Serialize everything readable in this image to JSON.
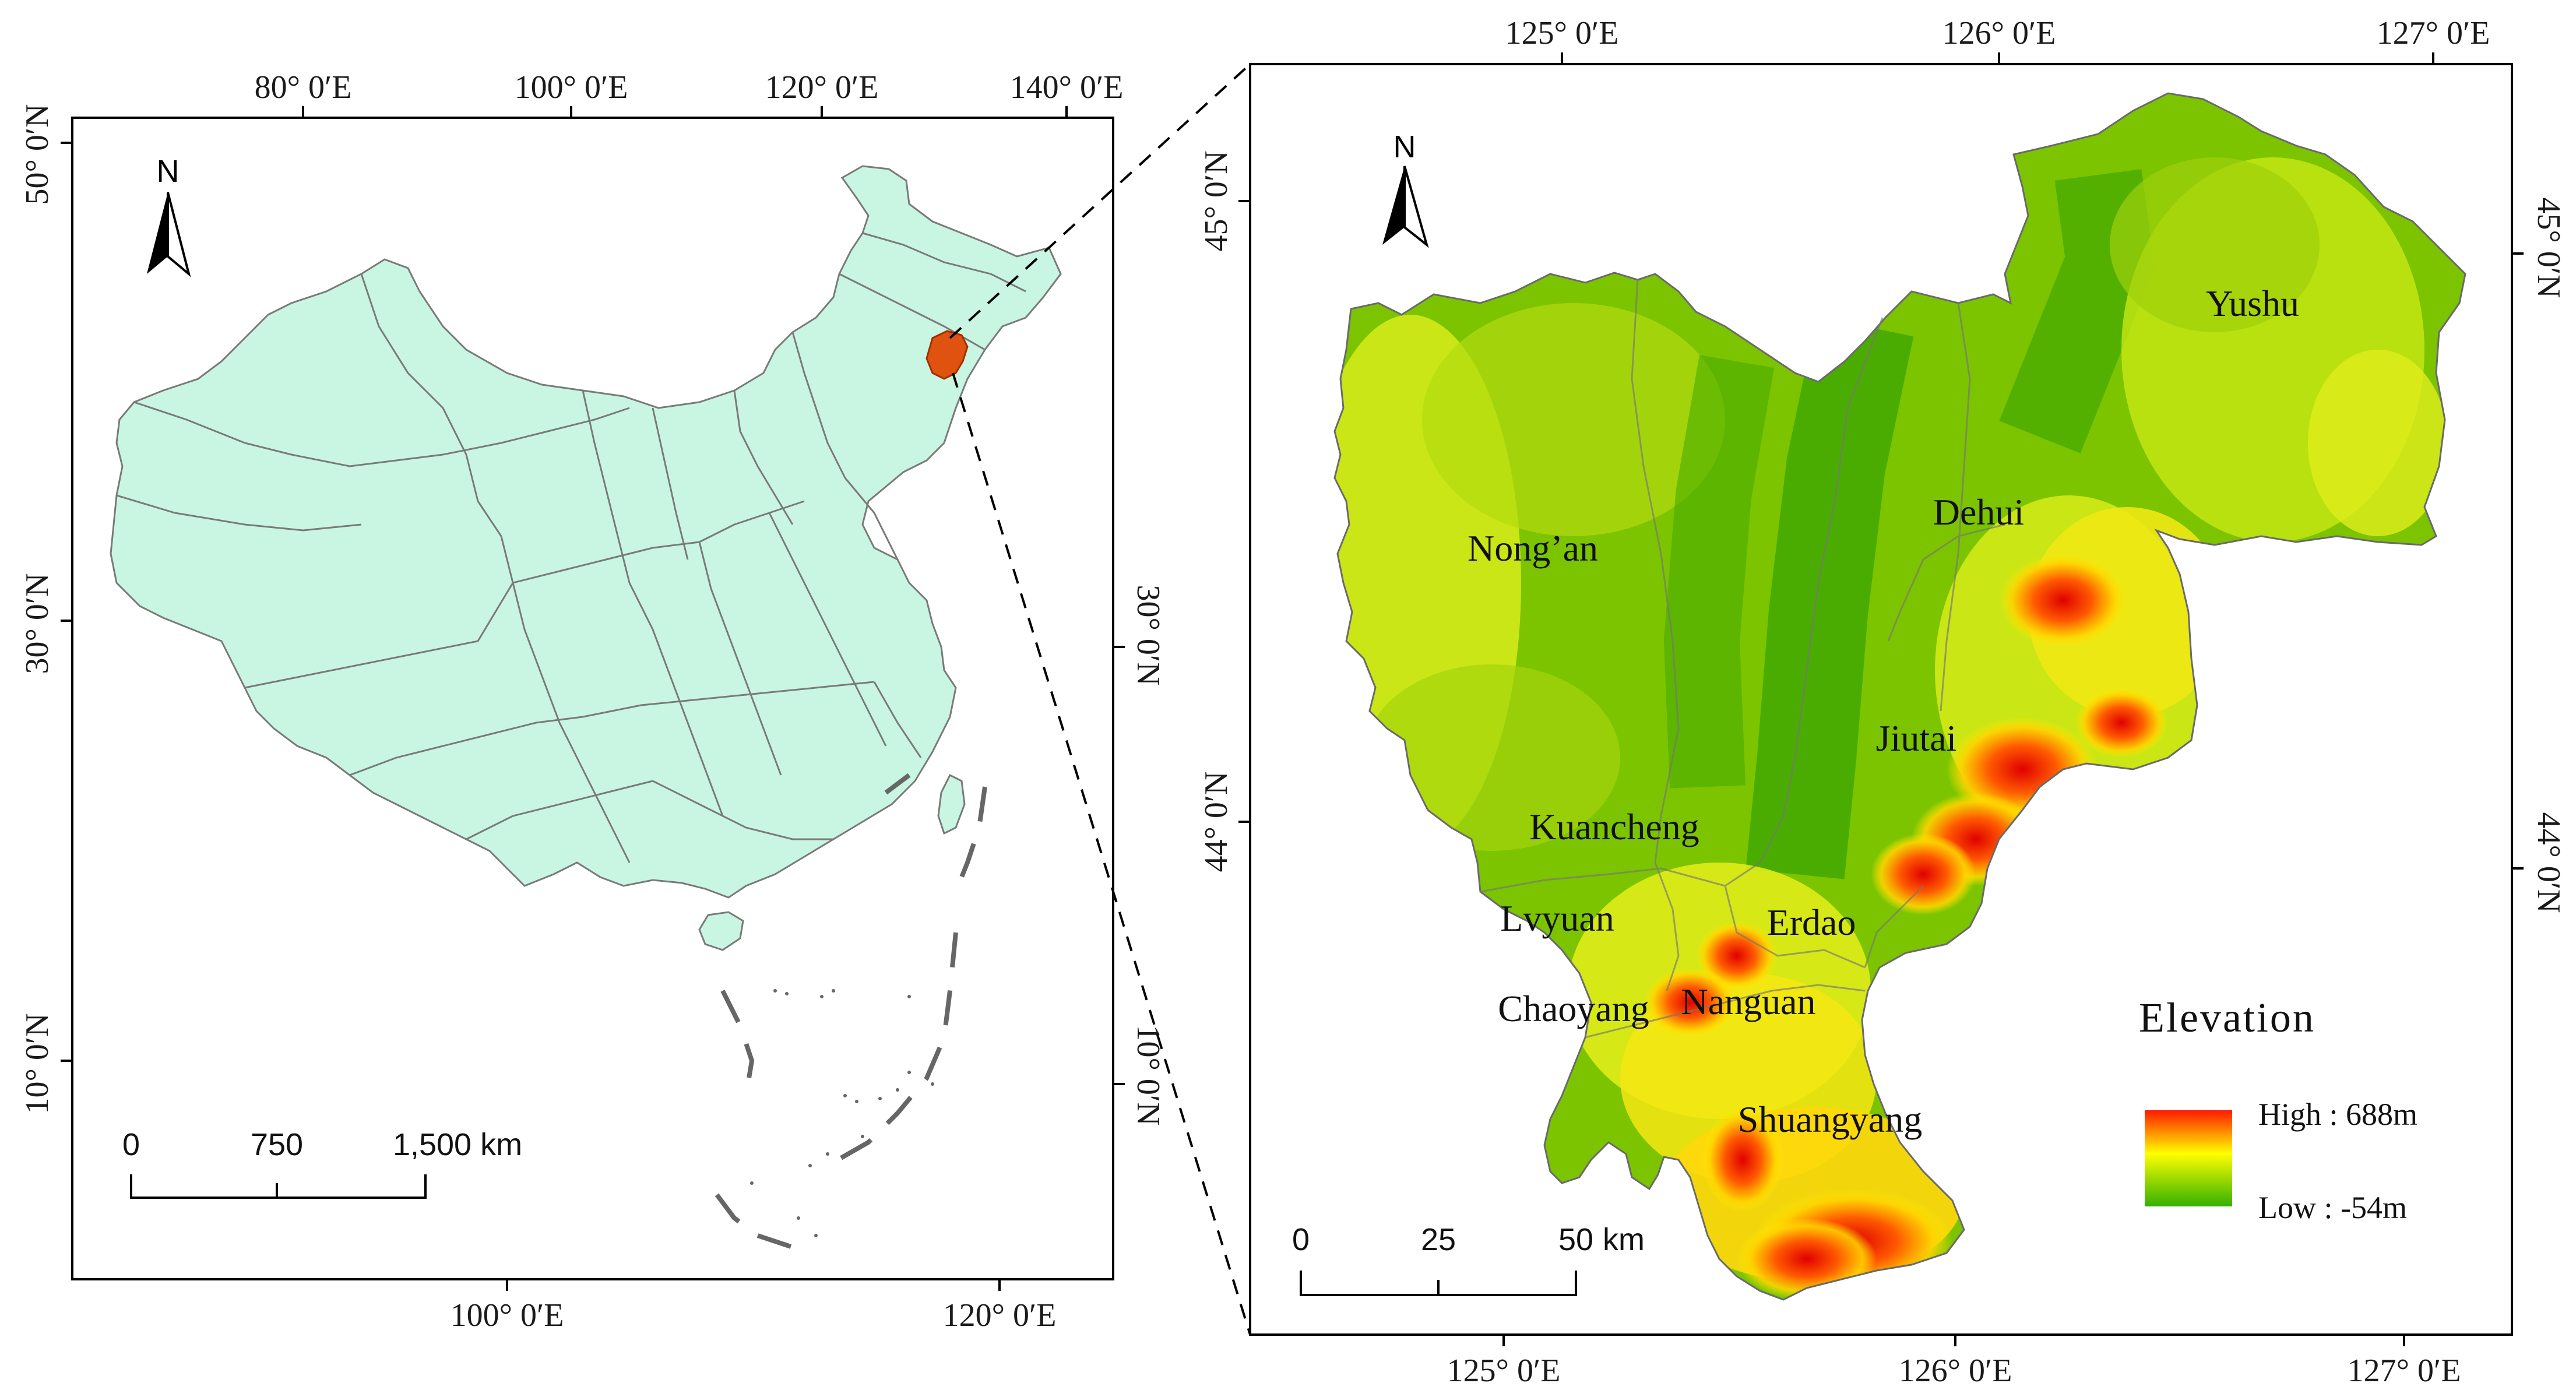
{
  "overview_map": {
    "top_lon_labels": [
      "80° 0′E",
      "100° 0′E",
      "120° 0′E",
      "140° 0′E"
    ],
    "bottom_lon_labels": [
      "100° 0′E",
      "120° 0′E"
    ],
    "left_lat_labels": [
      "50° 0′N",
      "30° 0′N",
      "10° 0′N"
    ],
    "right_lat_labels": [
      "30° 0′N",
      "10° 0′N"
    ],
    "north_label": "N",
    "scale": {
      "labels": [
        "0",
        "750",
        "1,500 km"
      ]
    },
    "colors": {
      "land": "#c9f6e2",
      "study_area": "#e0520f"
    }
  },
  "detail_map": {
    "top_lon_labels": [
      "125° 0′E",
      "126° 0′E",
      "127° 0′E"
    ],
    "bottom_lon_labels": [
      "125° 0′E",
      "126° 0′E",
      "127° 0′E"
    ],
    "left_lat_labels": [
      "45° 0′N",
      "44° 0′N"
    ],
    "right_lat_labels": [
      "45° 0′N",
      "44° 0′N"
    ],
    "north_label": "N",
    "places": [
      "Yushu",
      "Dehui",
      "Nong’an",
      "Jiutai",
      "Kuancheng",
      "Lvyuan",
      "Erdao",
      "Chaoyang",
      "Nanguan",
      "Shuangyang"
    ],
    "scale": {
      "labels": [
        "0",
        "25",
        "50",
        "km"
      ]
    },
    "legend": {
      "title": "Elevation",
      "high_label": "High : 688m",
      "low_label": "Low : -54m",
      "high_color": "#ff1a00",
      "mid_color": "#ffff00",
      "low_color": "#33b000"
    }
  }
}
